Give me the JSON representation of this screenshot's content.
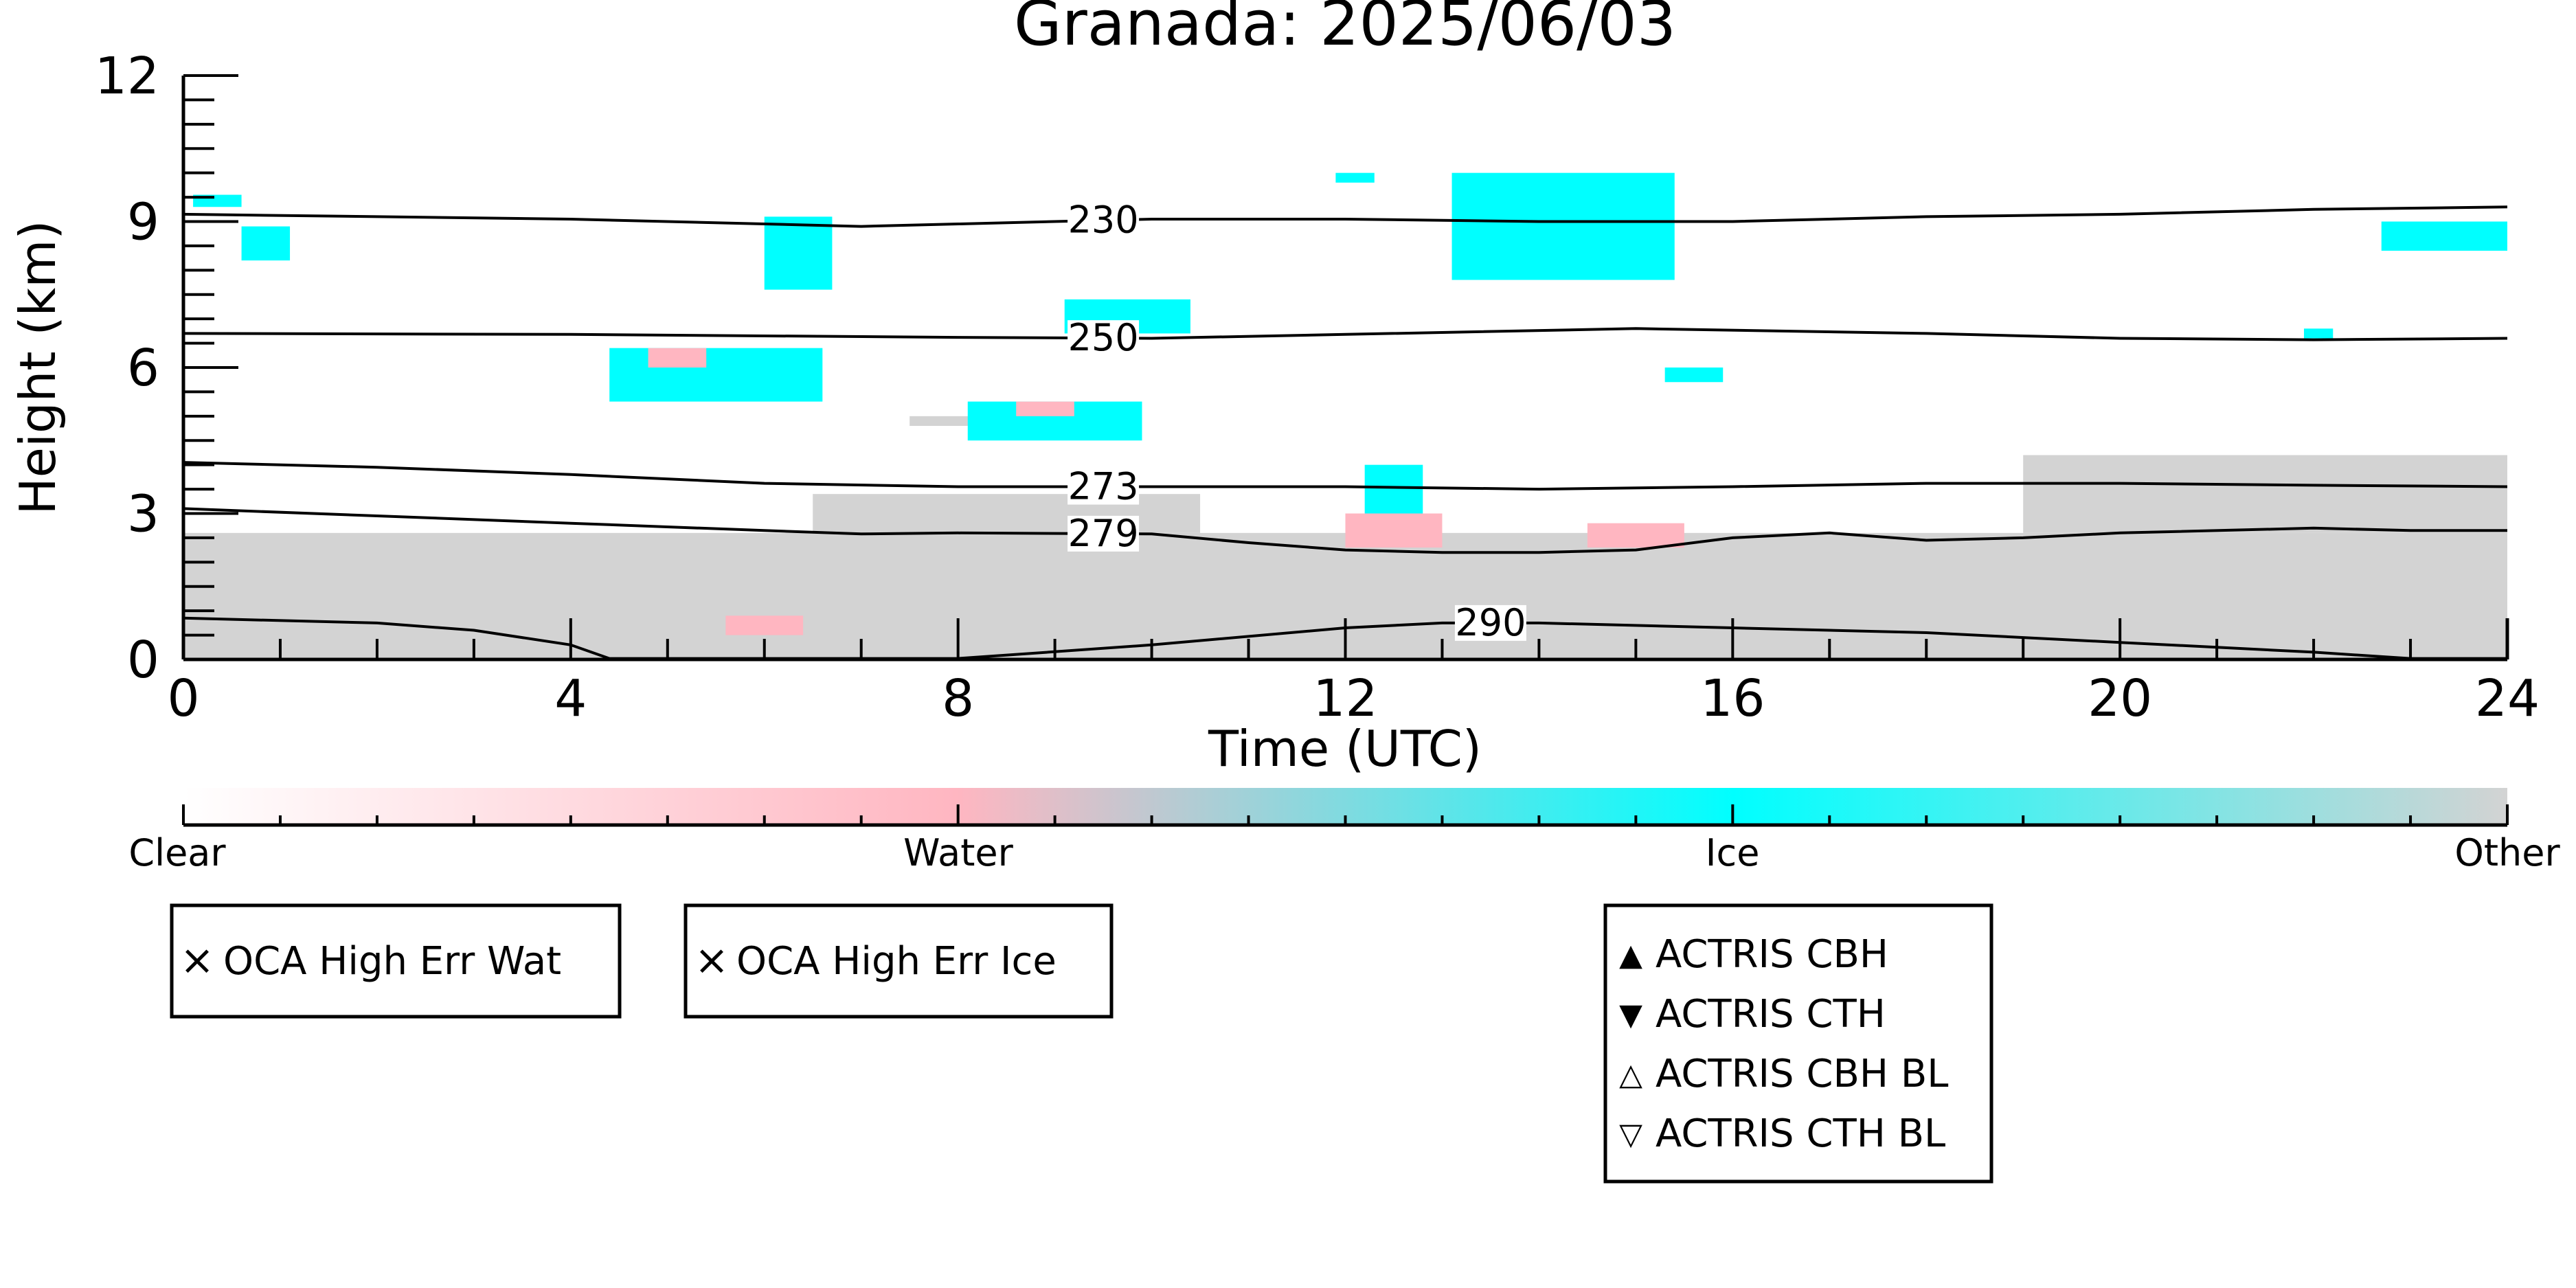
{
  "chart_data": {
    "type": "heatmap",
    "title": "Granada: 2025/06/03",
    "xlabel": "Time (UTC)",
    "ylabel": "Height (km)",
    "xlim": [
      0,
      24
    ],
    "ylim": [
      0,
      12
    ],
    "x_ticks": [
      0,
      4,
      8,
      12,
      16,
      20,
      24
    ],
    "y_ticks": [
      0,
      3,
      6,
      9,
      12
    ],
    "x_minor_step": 1,
    "y_minor_step": 0.5,
    "colorbar": {
      "labels": [
        "Clear",
        "Water",
        "Ice",
        "Other"
      ],
      "colors": [
        "#ffffff",
        "#ffb6c1",
        "#00ffff",
        "#d3d3d3"
      ]
    },
    "isotherms": [
      {
        "label": "230",
        "label_x": 9.5,
        "points": [
          [
            0,
            9.15
          ],
          [
            2,
            9.1
          ],
          [
            4,
            9.05
          ],
          [
            6,
            8.95
          ],
          [
            7,
            8.9
          ],
          [
            8,
            8.95
          ],
          [
            10,
            9.05
          ],
          [
            12,
            9.05
          ],
          [
            14,
            9.0
          ],
          [
            16,
            9.0
          ],
          [
            18,
            9.1
          ],
          [
            20,
            9.15
          ],
          [
            22,
            9.25
          ],
          [
            24,
            9.3
          ]
        ]
      },
      {
        "label": "250",
        "label_x": 9.5,
        "points": [
          [
            0,
            6.7
          ],
          [
            4,
            6.68
          ],
          [
            8,
            6.62
          ],
          [
            10,
            6.6
          ],
          [
            12,
            6.68
          ],
          [
            15,
            6.8
          ],
          [
            18,
            6.7
          ],
          [
            20,
            6.6
          ],
          [
            22,
            6.57
          ],
          [
            24,
            6.6
          ]
        ]
      },
      {
        "label": "273",
        "label_x": 9.5,
        "points": [
          [
            0,
            4.05
          ],
          [
            2,
            3.95
          ],
          [
            4,
            3.8
          ],
          [
            6,
            3.62
          ],
          [
            8,
            3.55
          ],
          [
            10,
            3.55
          ],
          [
            12,
            3.55
          ],
          [
            14,
            3.5
          ],
          [
            16,
            3.55
          ],
          [
            18,
            3.62
          ],
          [
            20,
            3.62
          ],
          [
            22,
            3.58
          ],
          [
            24,
            3.55
          ]
        ]
      },
      {
        "label": "279",
        "label_x": 9.5,
        "points": [
          [
            0,
            3.1
          ],
          [
            2,
            2.95
          ],
          [
            4,
            2.8
          ],
          [
            6,
            2.65
          ],
          [
            7,
            2.58
          ],
          [
            8,
            2.6
          ],
          [
            10,
            2.58
          ],
          [
            11,
            2.4
          ],
          [
            12,
            2.25
          ],
          [
            13,
            2.2
          ],
          [
            14,
            2.2
          ],
          [
            15,
            2.25
          ],
          [
            16,
            2.5
          ],
          [
            17,
            2.6
          ],
          [
            18,
            2.45
          ],
          [
            19,
            2.5
          ],
          [
            20,
            2.6
          ],
          [
            22,
            2.7
          ],
          [
            23,
            2.65
          ],
          [
            24,
            2.65
          ]
        ]
      },
      {
        "label": "290",
        "label_x": 13.5,
        "points": [
          [
            0,
            0.85
          ],
          [
            2,
            0.75
          ],
          [
            3,
            0.6
          ],
          [
            4,
            0.3
          ],
          [
            4.4,
            0.02
          ],
          [
            8,
            0.02
          ],
          [
            10,
            0.3
          ],
          [
            12,
            0.65
          ],
          [
            13,
            0.75
          ],
          [
            14,
            0.75
          ],
          [
            16,
            0.65
          ],
          [
            18,
            0.55
          ],
          [
            20,
            0.35
          ],
          [
            22,
            0.15
          ],
          [
            23,
            0.02
          ],
          [
            24,
            0.02
          ]
        ]
      }
    ],
    "regions": [
      {
        "class": "Other",
        "x0": 0,
        "x1": 24,
        "y0": 0,
        "y1": 2.6
      },
      {
        "class": "Other",
        "x0": 6.5,
        "x1": 10.5,
        "y0": 2.6,
        "y1": 3.4
      },
      {
        "class": "Other",
        "x0": 19,
        "x1": 24,
        "y0": 2.6,
        "y1": 4.2
      },
      {
        "class": "Other",
        "x0": 7.5,
        "x1": 9.8,
        "y0": 4.8,
        "y1": 5.0
      },
      {
        "class": "Ice",
        "x0": 0.1,
        "x1": 0.6,
        "y0": 9.3,
        "y1": 9.55
      },
      {
        "class": "Ice",
        "x0": 0.6,
        "x1": 1.1,
        "y0": 8.2,
        "y1": 8.9
      },
      {
        "class": "Ice",
        "x0": 6.0,
        "x1": 6.7,
        "y0": 7.6,
        "y1": 9.1
      },
      {
        "class": "Ice",
        "x0": 4.4,
        "x1": 6.6,
        "y0": 5.3,
        "y1": 6.4
      },
      {
        "class": "Water",
        "x0": 4.8,
        "x1": 5.4,
        "y0": 6.0,
        "y1": 6.4
      },
      {
        "class": "Ice",
        "x0": 8.1,
        "x1": 9.9,
        "y0": 4.5,
        "y1": 5.3
      },
      {
        "class": "Water",
        "x0": 8.6,
        "x1": 9.2,
        "y0": 5.0,
        "y1": 5.3
      },
      {
        "class": "Ice",
        "x0": 9.1,
        "x1": 10.4,
        "y0": 6.7,
        "y1": 7.4
      },
      {
        "class": "Ice",
        "x0": 11.9,
        "x1": 12.3,
        "y0": 9.8,
        "y1": 10.0
      },
      {
        "class": "Ice",
        "x0": 13.1,
        "x1": 15.4,
        "y0": 7.8,
        "y1": 10.0
      },
      {
        "class": "Ice",
        "x0": 15.3,
        "x1": 15.9,
        "y0": 5.7,
        "y1": 6.0
      },
      {
        "class": "Ice",
        "x0": 12.2,
        "x1": 12.8,
        "y0": 3.0,
        "y1": 4.0
      },
      {
        "class": "Water",
        "x0": 12.0,
        "x1": 13.0,
        "y0": 2.3,
        "y1": 3.0
      },
      {
        "class": "Water",
        "x0": 14.5,
        "x1": 15.5,
        "y0": 2.3,
        "y1": 2.8
      },
      {
        "class": "Ice",
        "x0": 22.7,
        "x1": 24.0,
        "y0": 8.4,
        "y1": 9.0
      },
      {
        "class": "Ice",
        "x0": 21.9,
        "x1": 22.2,
        "y0": 6.6,
        "y1": 6.8
      },
      {
        "class": "Water",
        "x0": 5.6,
        "x1": 6.4,
        "y0": 0.5,
        "y1": 0.9
      }
    ]
  },
  "legends": {
    "oca_wat": {
      "marker": "×",
      "color": "#22bb22",
      "label": "OCA High Err Wat"
    },
    "oca_ice": {
      "marker": "×",
      "color": "#1111dd",
      "label": "OCA High Err Ice"
    },
    "actris": [
      {
        "marker": "▲",
        "color": "#ff0000",
        "label": "ACTRIS CBH"
      },
      {
        "marker": "▼",
        "color": "#ff0000",
        "label": "ACTRIS CTH"
      },
      {
        "marker": "△",
        "color": "#ff0000",
        "label": "ACTRIS CBH BL"
      },
      {
        "marker": "▽",
        "color": "#ff0000",
        "label": "ACTRIS CTH BL"
      }
    ]
  }
}
